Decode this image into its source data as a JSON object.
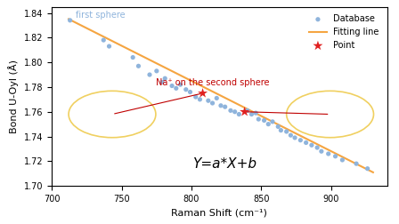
{
  "chart_data": {
    "type": "scatter",
    "x_label": "Raman Shift (cm⁻¹)",
    "y_label": "Bond U-Oyl (Å)",
    "annotations": [
      "first sphere",
      "Na⁺ on the second sphere",
      "Y=a*X+b"
    ],
    "xlim": [
      700,
      940
    ],
    "xticks": [
      700,
      750,
      800,
      850,
      900
    ],
    "ylim": [
      1.7,
      1.845
    ],
    "yticks": [
      {
        "value": 1.7,
        "label": "1.70"
      },
      1.72,
      1.74,
      1.76,
      1.78,
      {
        "value": 1.8,
        "label": "1.80"
      },
      1.82,
      1.84
    ],
    "legend": "upper right",
    "series": [
      {
        "name": "Database",
        "type": "scatter",
        "marker": "o",
        "color": "#8fb4dc",
        "x": [
          713,
          737,
          741,
          758,
          762,
          770,
          775,
          779,
          781,
          786,
          789,
          792,
          796,
          799,
          803,
          806,
          812,
          815,
          818,
          821,
          824,
          828,
          831,
          834,
          840,
          843,
          846,
          848,
          852,
          855,
          858,
          862,
          864,
          868,
          871,
          874,
          878,
          882,
          886,
          890,
          893,
          898,
          903,
          908,
          918,
          926
        ],
        "values": [
          1.834,
          1.818,
          1.813,
          1.804,
          1.797,
          1.79,
          1.793,
          1.784,
          1.787,
          1.781,
          1.779,
          1.782,
          1.778,
          1.776,
          1.772,
          1.77,
          1.769,
          1.767,
          1.771,
          1.765,
          1.764,
          1.761,
          1.76,
          1.758,
          1.761,
          1.758,
          1.759,
          1.754,
          1.753,
          1.75,
          1.752,
          1.748,
          1.745,
          1.744,
          1.741,
          1.739,
          1.737,
          1.735,
          1.733,
          1.731,
          1.728,
          1.726,
          1.724,
          1.721,
          1.718,
          1.714
        ]
      },
      {
        "name": "Fitting line",
        "type": "line",
        "line_style": "solid",
        "color": "#f5a541",
        "x": [
          712,
          930
        ],
        "values": [
          1.835,
          1.711
        ]
      },
      {
        "name": "Point",
        "type": "scatter",
        "marker": "*",
        "color": "#e02020",
        "x": [
          808,
          838
        ],
        "values": [
          1.775,
          1.76
        ]
      }
    ]
  }
}
